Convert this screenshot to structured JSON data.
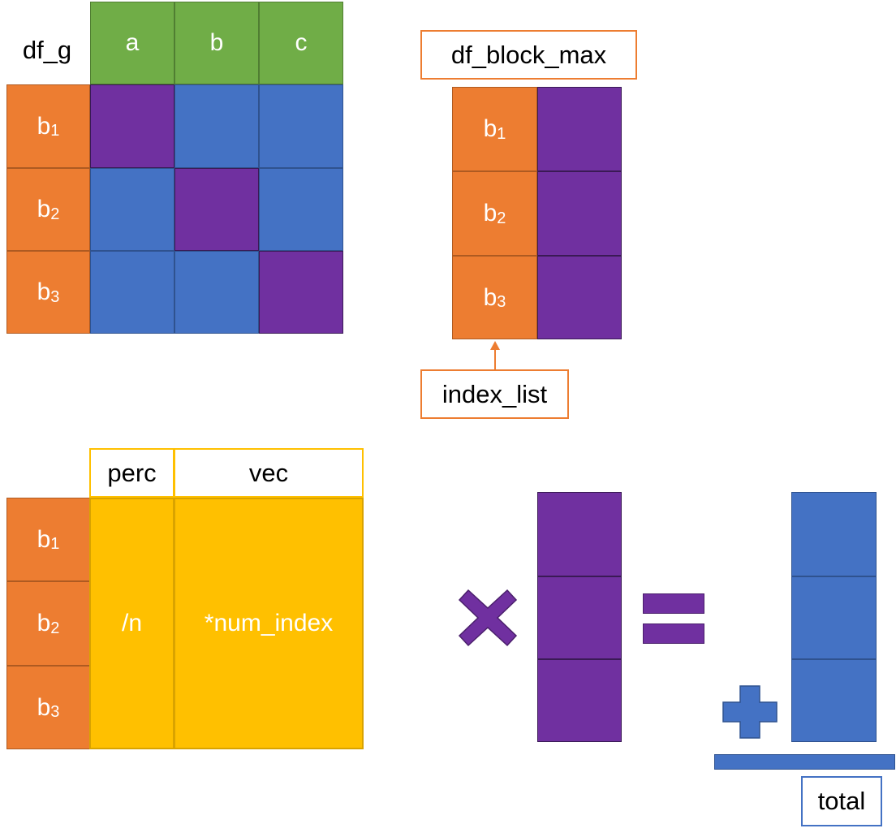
{
  "df_g": {
    "title": "df_g",
    "columns": [
      "a",
      "b",
      "c"
    ],
    "rows": [
      {
        "base": "b",
        "sub": "1"
      },
      {
        "base": "b",
        "sub": "2"
      },
      {
        "base": "b",
        "sub": "3"
      }
    ]
  },
  "df_block_max": {
    "title": "df_block_max",
    "rows": [
      {
        "base": "b",
        "sub": "1"
      },
      {
        "base": "b",
        "sub": "2"
      },
      {
        "base": "b",
        "sub": "3"
      }
    ],
    "index_label": "index_list"
  },
  "perc_vec": {
    "columns": [
      "perc",
      "vec"
    ],
    "rows": [
      {
        "base": "b",
        "sub": "1"
      },
      {
        "base": "b",
        "sub": "2"
      },
      {
        "base": "b",
        "sub": "3"
      }
    ],
    "perc_text": "/n",
    "vec_text": "*num_index"
  },
  "total": {
    "label": "total"
  },
  "colors": {
    "orange": "#ED7D31",
    "blue": "#4472C4",
    "purple": "#7030A0",
    "green": "#70AD47",
    "gold": "#FFC000"
  },
  "icons": [
    "multiply-icon",
    "equals-icon",
    "plus-icon",
    "arrow-up-icon"
  ]
}
